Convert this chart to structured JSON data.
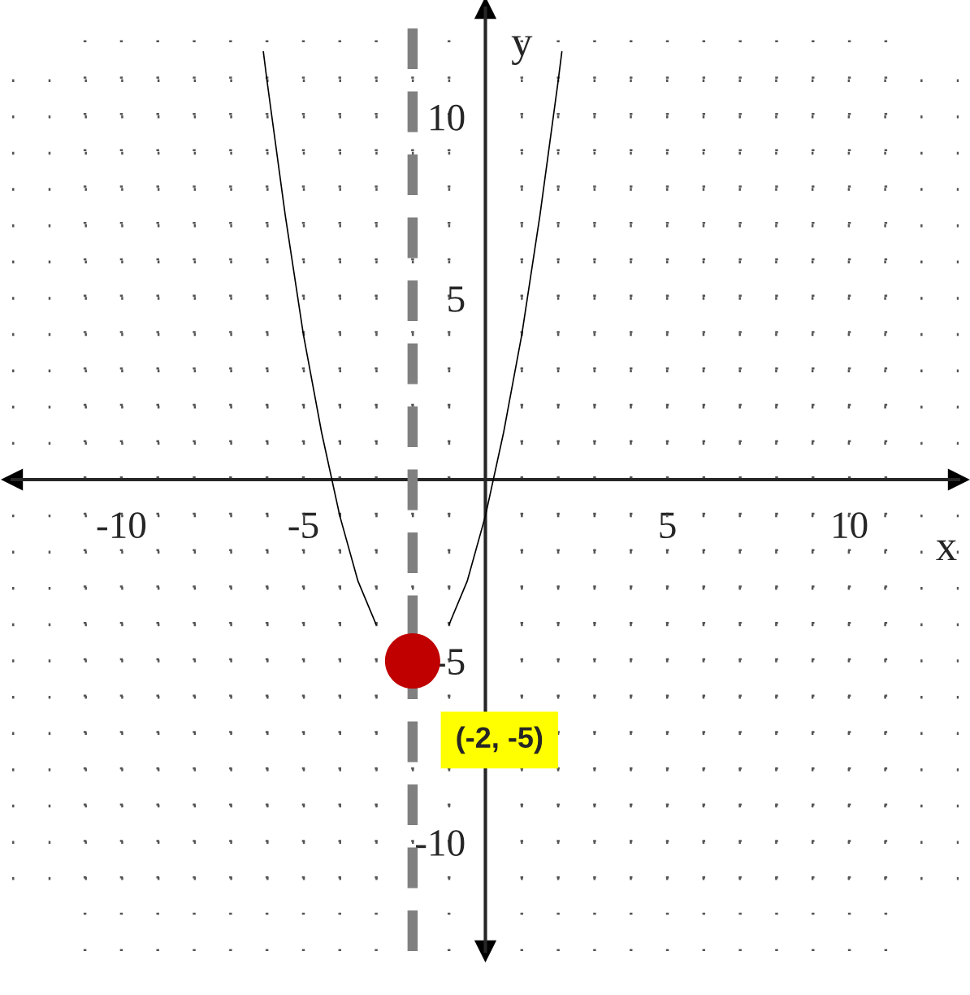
{
  "chart_data": {
    "type": "line",
    "xlabel": "x",
    "ylabel": "y",
    "xlim": [
      -13,
      13
    ],
    "ylim": [
      -13,
      13
    ],
    "xticks": [
      {
        "value": -11,
        "label": null
      },
      {
        "value": -10,
        "label": "-10"
      },
      {
        "value": -9,
        "label": null
      },
      {
        "value": -8,
        "label": null
      },
      {
        "value": -7,
        "label": null
      },
      {
        "value": -6,
        "label": null
      },
      {
        "value": -5,
        "label": "-5"
      },
      {
        "value": -4,
        "label": null
      },
      {
        "value": -3,
        "label": null
      },
      {
        "value": -2,
        "label": null
      },
      {
        "value": -1,
        "label": null
      },
      {
        "value": 1,
        "label": null
      },
      {
        "value": 2,
        "label": null
      },
      {
        "value": 3,
        "label": null
      },
      {
        "value": 4,
        "label": null
      },
      {
        "value": 5,
        "label": "5"
      },
      {
        "value": 6,
        "label": null
      },
      {
        "value": 7,
        "label": null
      },
      {
        "value": 8,
        "label": null
      },
      {
        "value": 9,
        "label": null
      },
      {
        "value": 10,
        "label": "10"
      },
      {
        "value": 11,
        "label": null
      }
    ],
    "yticks": [
      {
        "value": -11,
        "label": null
      },
      {
        "value": -10,
        "label": "-10"
      },
      {
        "value": -9,
        "label": null
      },
      {
        "value": -8,
        "label": null
      },
      {
        "value": -7,
        "label": null
      },
      {
        "value": -6,
        "label": null
      },
      {
        "value": -5,
        "label": "-5"
      },
      {
        "value": -4,
        "label": null
      },
      {
        "value": -3,
        "label": null
      },
      {
        "value": -2,
        "label": null
      },
      {
        "value": -1,
        "label": null
      },
      {
        "value": 1,
        "label": null
      },
      {
        "value": 2,
        "label": null
      },
      {
        "value": 3,
        "label": null
      },
      {
        "value": 4,
        "label": null
      },
      {
        "value": 5,
        "label": "5"
      },
      {
        "value": 6,
        "label": null
      },
      {
        "value": 7,
        "label": null
      },
      {
        "value": 8,
        "label": null
      },
      {
        "value": 9,
        "label": null
      },
      {
        "value": 10,
        "label": "10"
      },
      {
        "value": 11,
        "label": null
      }
    ],
    "grid": true,
    "series": [
      {
        "color": "#000000",
        "x": [
          -6.1,
          -6,
          -5.5,
          -5,
          -4.5,
          -4,
          -3.5,
          -3,
          -2.5,
          -2,
          -1.5,
          -1,
          -0.5,
          0,
          0.5,
          1,
          1.5,
          2,
          2.1
        ],
        "values": [
          11.8,
          11,
          7.3,
          4,
          1.3,
          -1,
          -2.8,
          -4,
          null,
          null,
          null,
          -4,
          -2.8,
          -1,
          1.3,
          4,
          7.3,
          11,
          11.8
        ]
      },
      {
        "type": "scatter",
        "color": "#c00000",
        "marker": "circle",
        "x": [
          -2
        ],
        "values": [
          -5
        ]
      }
    ],
    "ref_lines": [
      {
        "axis": "x",
        "value": -2,
        "color": "#808080",
        "line_style": "dashed"
      }
    ],
    "annotations": [
      {
        "text": "(-2, -5)",
        "x": -2,
        "y": -5
      }
    ]
  }
}
